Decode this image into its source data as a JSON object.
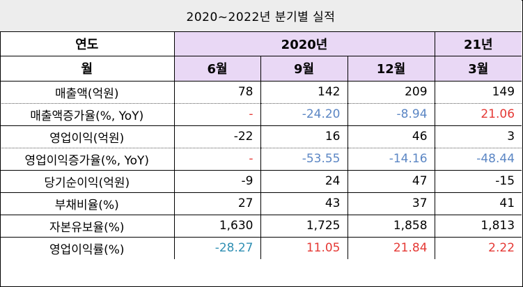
{
  "title": "2020~2022년 분기별 실적",
  "header": {
    "row1_label": "연도",
    "year_2020": "2020년",
    "year_21": "21년",
    "row2_label": "월",
    "months": [
      "6월",
      "9월",
      "12월",
      "3월"
    ]
  },
  "colors": {
    "negative_blue": "#5b86c4",
    "positive_red": "#e53935",
    "teal": "#2f8fb3",
    "header_purple": "#e9d8f5",
    "title_gray": "#ededed"
  },
  "rows": [
    {
      "label": "매출액(억원)",
      "values": [
        "78",
        "142",
        "209",
        "149"
      ],
      "colors": [
        "black",
        "black",
        "black",
        "black"
      ]
    },
    {
      "label": "매출액증가율(%, YoY)",
      "values": [
        "-",
        "-24.20",
        "-8.94",
        "21.06"
      ],
      "colors": [
        "red",
        "blue",
        "blue",
        "red"
      ]
    },
    {
      "label": "영업이익(억원)",
      "values": [
        "-22",
        "16",
        "46",
        "3"
      ],
      "colors": [
        "black",
        "black",
        "black",
        "black"
      ]
    },
    {
      "label": "영업이익증가율(%, YoY)",
      "values": [
        "-",
        "-53.55",
        "-14.16",
        "-48.44"
      ],
      "colors": [
        "red",
        "blue",
        "blue",
        "blue"
      ]
    },
    {
      "label": "당기순이익(억원)",
      "values": [
        "-9",
        "24",
        "47",
        "-15"
      ],
      "colors": [
        "black",
        "black",
        "black",
        "black"
      ]
    },
    {
      "label": "부채비율(%)",
      "values": [
        "27",
        "43",
        "37",
        "41"
      ],
      "colors": [
        "black",
        "black",
        "black",
        "black"
      ]
    },
    {
      "label": "자본유보율(%)",
      "values": [
        "1,630",
        "1,725",
        "1,858",
        "1,813"
      ],
      "colors": [
        "black",
        "black",
        "black",
        "black"
      ]
    },
    {
      "label": "영업이익률(%)",
      "values": [
        "-28.27",
        "11.05",
        "21.84",
        "2.22"
      ],
      "colors": [
        "teal",
        "red",
        "red",
        "red"
      ]
    }
  ]
}
